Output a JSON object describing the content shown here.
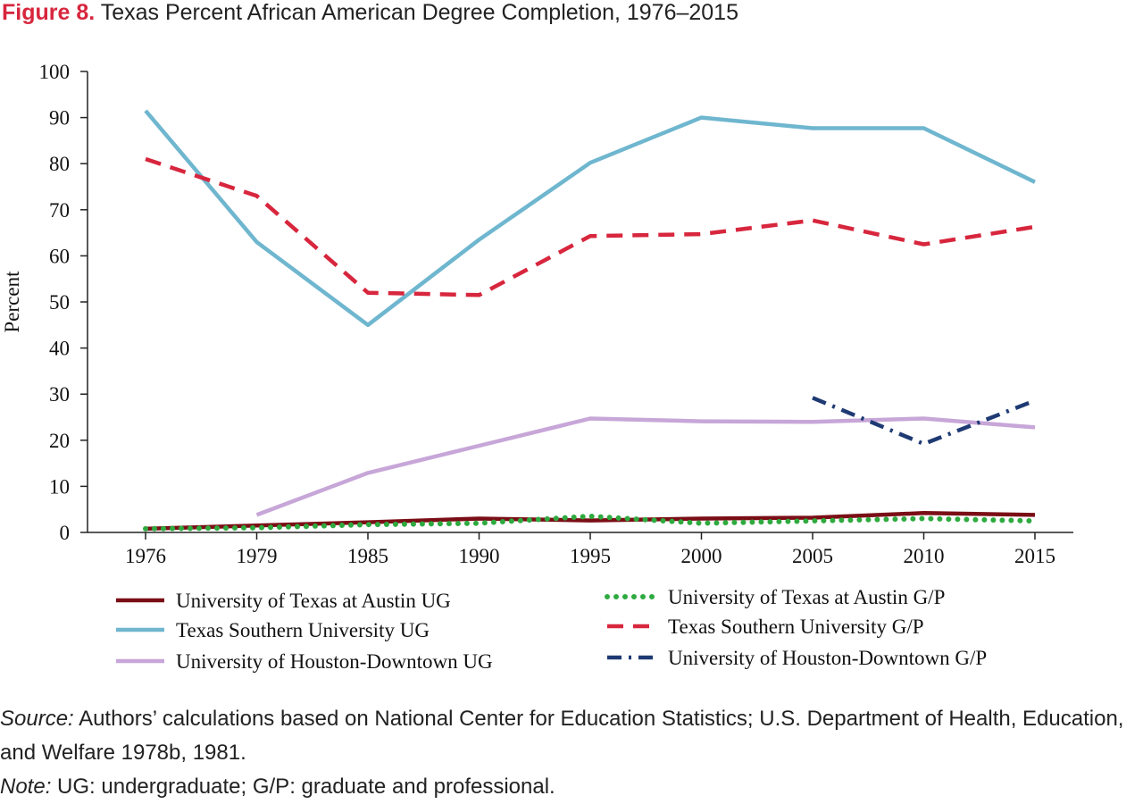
{
  "figure": {
    "label": "Figure 8.",
    "title": "Texas Percent African American Degree Completion, 1976–2015"
  },
  "chart_data": {
    "type": "line",
    "title": "Texas Percent African American Degree Completion, 1976–2015",
    "xlabel": "",
    "ylabel": "Percent",
    "categories": [
      "1976",
      "1979",
      "1985",
      "1990",
      "1995",
      "2000",
      "2005",
      "2010",
      "2015"
    ],
    "ylim": [
      0,
      100
    ],
    "yticks": [
      0,
      10,
      20,
      30,
      40,
      50,
      60,
      70,
      80,
      90,
      100
    ],
    "grid": false,
    "legend_position": "bottom",
    "series": [
      {
        "name": "University of Texas at Austin UG",
        "color": "#7a0e16",
        "style": "solid",
        "values": [
          0.8,
          1.5,
          2.2,
          3.0,
          2.6,
          3.0,
          3.2,
          4.2,
          3.8
        ]
      },
      {
        "name": "Texas Southern University UG",
        "color": "#6fb6cf",
        "style": "solid",
        "values": [
          91.5,
          63.0,
          45.0,
          63.5,
          80.2,
          90.0,
          87.7,
          87.7,
          76.0
        ]
      },
      {
        "name": "University of Houston-Downtown UG",
        "color": "#c7a6d8",
        "style": "solid",
        "values": [
          null,
          3.8,
          12.9,
          18.8,
          24.7,
          24.1,
          24.0,
          24.7,
          22.8
        ]
      },
      {
        "name": "University of Texas at Austin G/P",
        "color": "#2eaa3f",
        "style": "dotted",
        "values": [
          0.8,
          1.0,
          1.7,
          2.0,
          3.5,
          2.0,
          2.5,
          3.0,
          2.5
        ]
      },
      {
        "name": "Texas Southern University G/P",
        "color": "#d7263d",
        "style": "dashed",
        "values": [
          81.0,
          73.0,
          52.0,
          51.5,
          64.3,
          64.7,
          67.7,
          62.5,
          66.3
        ]
      },
      {
        "name": "University of Houston-Downtown G/P",
        "color": "#1f3a73",
        "style": "dashdot",
        "values": [
          null,
          null,
          null,
          null,
          null,
          null,
          29.2,
          19.2,
          28.6
        ]
      }
    ]
  },
  "footer": {
    "source_label": "Source:",
    "source_text": " Authors’ calculations based on National Center for Education Statistics; U.S. Department of Health, Education, and Welfare 1978b, 1981.",
    "note_label": "Note:",
    "note_text": " UG: undergraduate; G/P: graduate and professional."
  }
}
